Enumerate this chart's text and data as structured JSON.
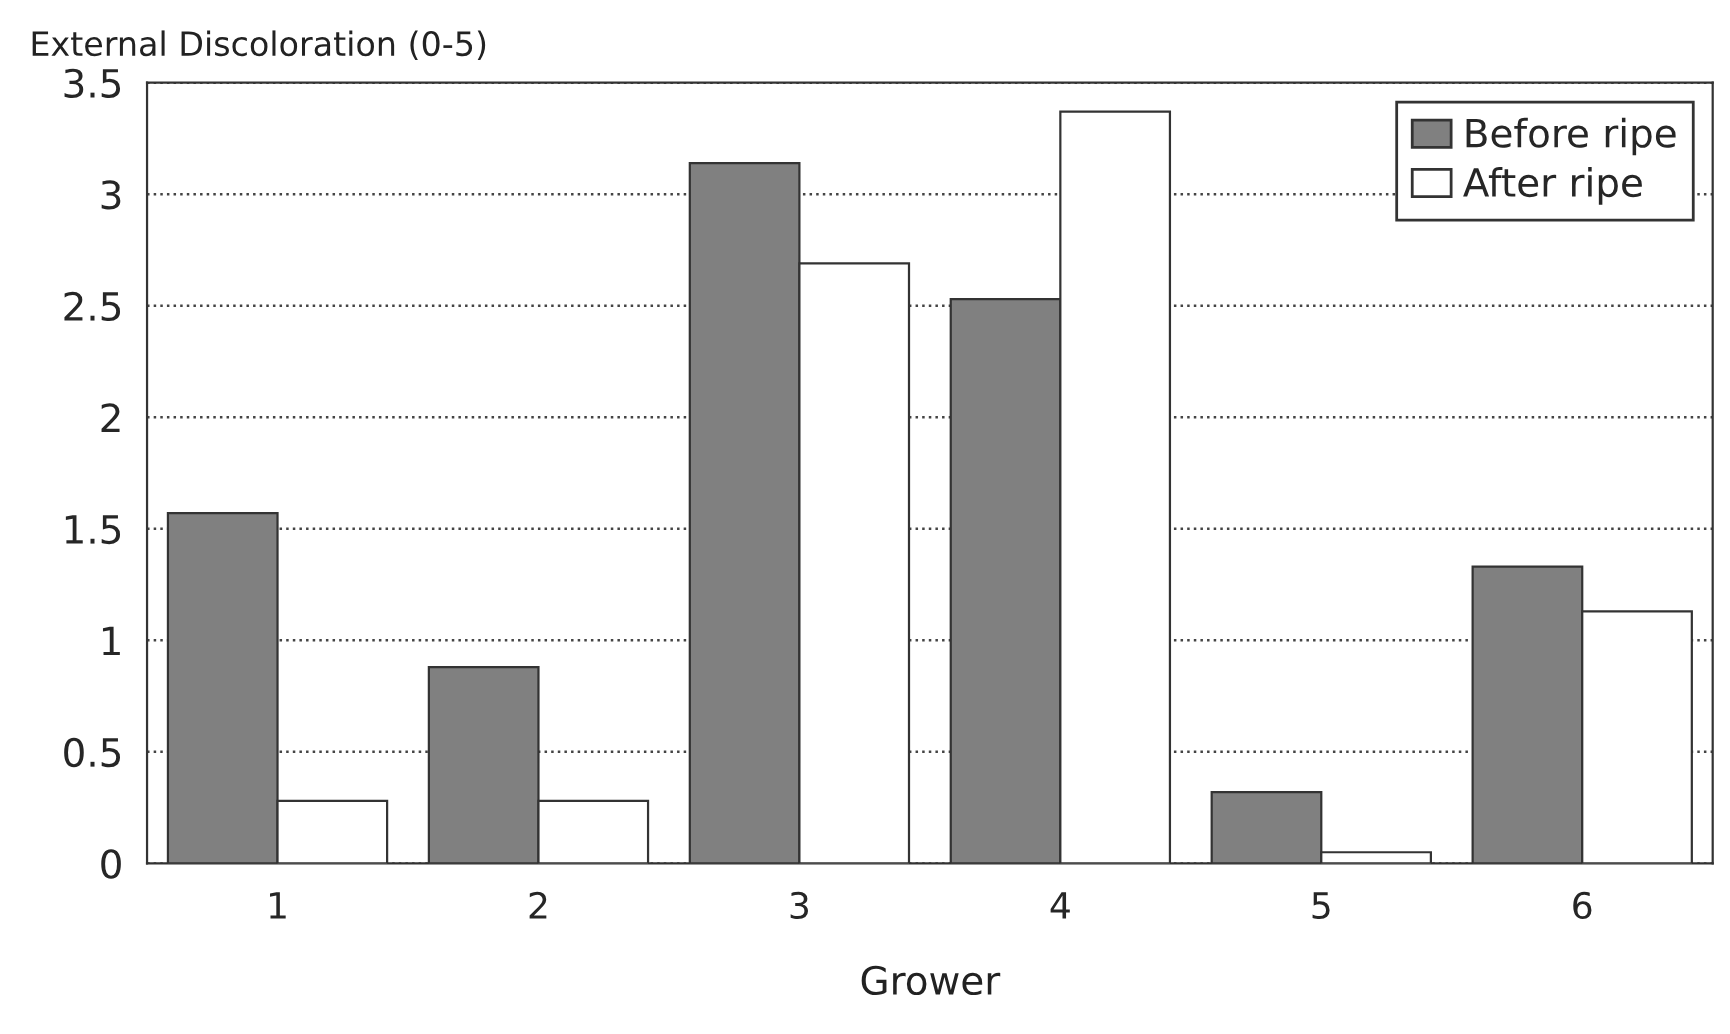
{
  "chart_data": {
    "type": "bar",
    "ylabel": "External Discoloration (0-5)",
    "xlabel": "Grower",
    "categories": [
      "1",
      "2",
      "3",
      "4",
      "5",
      "6"
    ],
    "series": [
      {
        "name": "Before ripe",
        "color": "#808080",
        "values": [
          1.57,
          0.88,
          3.14,
          2.53,
          0.32,
          1.33
        ]
      },
      {
        "name": "After ripe",
        "color": "#ffffff",
        "values": [
          0.28,
          0.28,
          2.69,
          3.37,
          0.05,
          1.13
        ]
      }
    ],
    "ylim": [
      0,
      3.5
    ],
    "yticks": [
      0,
      {
        "value": 0.5,
        "label": "0.5"
      },
      1,
      {
        "value": 1.5,
        "label": "1.5"
      },
      2,
      {
        "value": 2.5,
        "label": "2.5"
      },
      3,
      {
        "value": 3.5,
        "label": "3.5"
      }
    ],
    "grid": "y",
    "legend": "top right"
  }
}
